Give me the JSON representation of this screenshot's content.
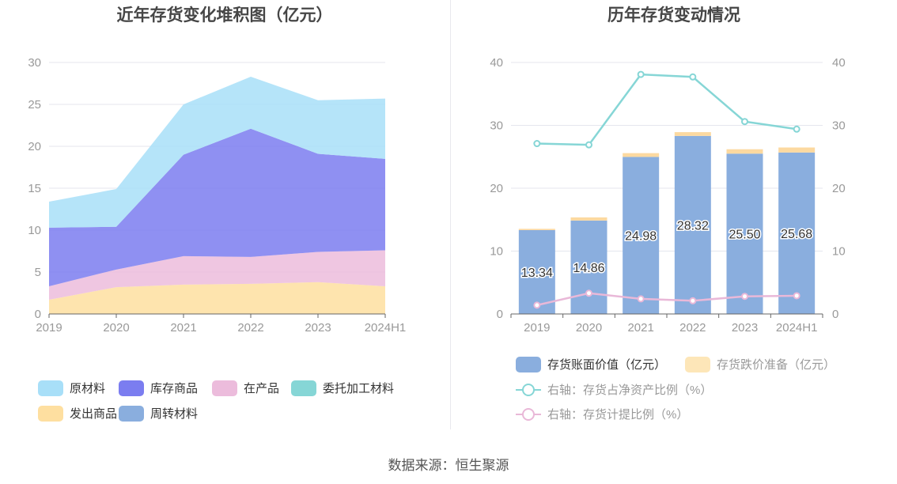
{
  "colors": {
    "raw": "#a8dff8",
    "finished": "#7b7df0",
    "wip": "#ecbcdc",
    "outsourced": "#86d6d6",
    "shipped": "#fedfa0",
    "turnover": "#8aaede",
    "bar_book": "#8aaede",
    "bar_reserve": "#fde6b8",
    "line_ratio_net": "#86d6d6",
    "line_reserve_ratio": "#e9b8d8",
    "grid": "#e4e6ee",
    "axis_text": "#999999"
  },
  "left": {
    "title": "近年存货变化堆积图（亿元）",
    "legend": [
      {
        "key": "raw",
        "label": "原材料"
      },
      {
        "key": "finished",
        "label": "库存商品"
      },
      {
        "key": "wip",
        "label": "在产品"
      },
      {
        "key": "outsourced",
        "label": "委托加工材料"
      },
      {
        "key": "shipped",
        "label": "发出商品"
      },
      {
        "key": "turnover",
        "label": "周转材料"
      }
    ]
  },
  "right": {
    "title": "历年存货变动情况",
    "legend": [
      {
        "key": "bar_book",
        "label": "存货账面价值（亿元）",
        "type": "bar"
      },
      {
        "key": "bar_reserve",
        "label": "存货跌价准备（亿元）",
        "type": "bar",
        "muted": true
      },
      {
        "key": "line_ratio_net",
        "label": "右轴：存货占净资产比例（%）",
        "type": "line",
        "muted": true
      },
      {
        "key": "line_reserve_ratio",
        "label": "右轴：存货计提比例（%）",
        "type": "line",
        "muted": true
      }
    ]
  },
  "source": "数据来源：恒生聚源",
  "chart_data": [
    {
      "type": "area",
      "stacked": true,
      "title": "近年存货变化堆积图（亿元）",
      "categories": [
        "2019",
        "2020",
        "2021",
        "2022",
        "2023",
        "2024H1"
      ],
      "ylim": [
        0,
        30
      ],
      "yticks": [
        0,
        5,
        10,
        15,
        20,
        25,
        30
      ],
      "series": [
        {
          "name": "发出商品",
          "key": "shipped",
          "values": [
            1.7,
            3.2,
            3.5,
            3.6,
            3.8,
            3.3
          ]
        },
        {
          "name": "在产品",
          "key": "wip",
          "values": [
            1.6,
            2.1,
            3.4,
            3.2,
            3.6,
            4.3
          ]
        },
        {
          "name": "库存商品",
          "key": "finished",
          "values": [
            7.0,
            5.1,
            12.1,
            15.3,
            11.7,
            10.9
          ]
        },
        {
          "name": "原材料",
          "key": "raw",
          "values": [
            3.1,
            4.5,
            6.0,
            6.2,
            6.4,
            7.2
          ]
        },
        {
          "name": "委托加工材料",
          "key": "outsourced",
          "values": [
            0,
            0,
            0,
            0,
            0,
            0
          ]
        },
        {
          "name": "周转材料",
          "key": "turnover",
          "values": [
            0,
            0,
            0,
            0,
            0,
            0
          ]
        }
      ]
    },
    {
      "type": "bar",
      "title": "历年存货变动情况",
      "categories": [
        "2019",
        "2020",
        "2021",
        "2022",
        "2023",
        "2024H1"
      ],
      "ylim": [
        0,
        40
      ],
      "yticks": [
        0,
        10,
        20,
        30,
        40
      ],
      "y2lim": [
        0,
        40
      ],
      "y2ticks": [
        0,
        10,
        20,
        30,
        40
      ],
      "series": [
        {
          "name": "存货账面价值（亿元）",
          "key": "bar_book",
          "type": "bar",
          "values": [
            13.34,
            14.86,
            24.98,
            28.32,
            25.5,
            25.68
          ],
          "labels": [
            "13.34",
            "14.86",
            "24.98",
            "28.32",
            "25.50",
            "25.68"
          ]
        },
        {
          "name": "存货跌价准备（亿元）",
          "key": "bar_reserve",
          "type": "bar",
          "values": [
            0.2,
            0.5,
            0.6,
            0.6,
            0.7,
            0.8
          ]
        },
        {
          "name": "右轴：存货占净资产比例（%）",
          "key": "line_ratio_net",
          "type": "line",
          "values": [
            27.1,
            26.9,
            38.1,
            37.7,
            30.6,
            29.4
          ]
        },
        {
          "name": "右轴：存货计提比例（%）",
          "key": "line_reserve_ratio",
          "type": "line",
          "values": [
            1.4,
            3.3,
            2.4,
            2.1,
            2.8,
            2.9
          ]
        }
      ]
    }
  ]
}
